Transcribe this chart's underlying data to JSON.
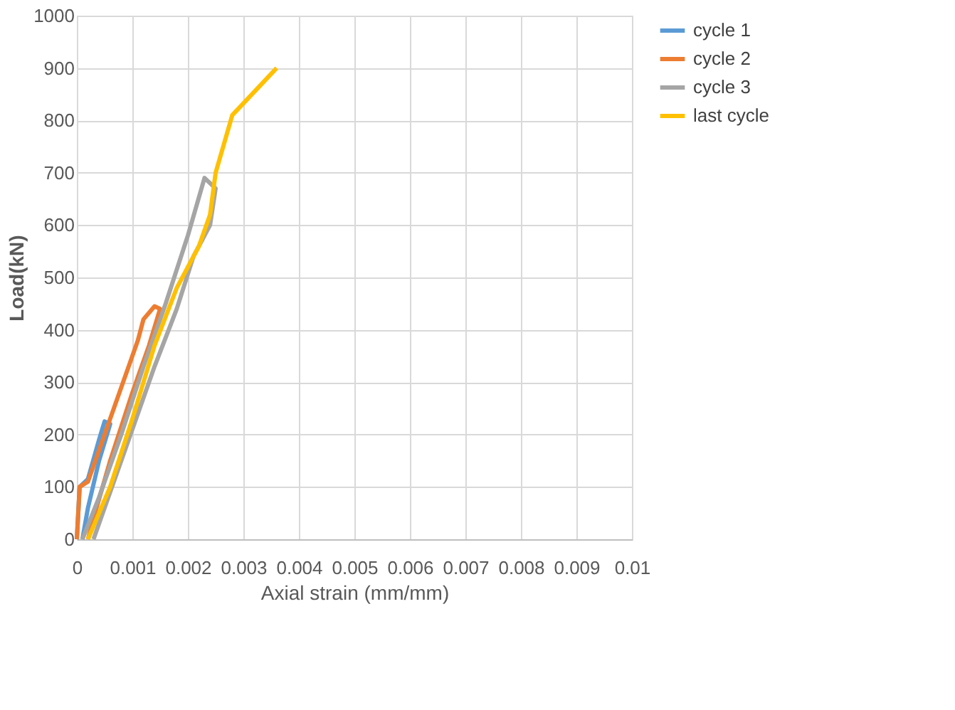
{
  "chart_data": {
    "type": "line",
    "xlabel": "Axial strain (mm/mm)",
    "ylabel": "Load(kN)",
    "xlim": [
      0,
      0.01
    ],
    "xticks": [
      0,
      0.001,
      0.002,
      0.003,
      0.004,
      0.005,
      0.006,
      0.007,
      0.008,
      0.009,
      0.01
    ],
    "ylim": [
      0,
      1000
    ],
    "yticks": [
      0,
      100,
      200,
      300,
      400,
      500,
      600,
      700,
      800,
      900,
      1000
    ],
    "grid": true,
    "legend": "right",
    "marker": "none",
    "line_style": "solid",
    "series": [
      {
        "name": "cycle 1",
        "color": "#5b9bd5",
        "x": [
          0,
          5e-05,
          0.0002,
          0.0004,
          0.0005,
          0.0006,
          0.0004,
          0.0002,
          0.0001
        ],
        "values": [
          0,
          100,
          115,
          190,
          225,
          220,
          150,
          60,
          0
        ]
      },
      {
        "name": "cycle 2",
        "color": "#ed7d31",
        "x": [
          0,
          5e-05,
          0.0002,
          0.0005,
          0.0008,
          0.0011,
          0.0012,
          0.0014,
          0.0015,
          0.0013,
          0.001,
          0.0006,
          0.0003,
          0.0002
        ],
        "values": [
          0,
          100,
          110,
          200,
          290,
          380,
          420,
          445,
          440,
          370,
          280,
          150,
          40,
          0
        ]
      },
      {
        "name": "cycle 3",
        "color": "#a5a5a5",
        "x": [
          0.0001,
          0.0004,
          0.0008,
          0.0012,
          0.0016,
          0.002,
          0.0023,
          0.0025,
          0.0024,
          0.0021,
          0.0018,
          0.0014,
          0.001,
          0.0006,
          0.0003
        ],
        "values": [
          0,
          80,
          200,
          330,
          450,
          580,
          690,
          670,
          600,
          540,
          440,
          330,
          210,
          90,
          0
        ]
      },
      {
        "name": "last cycle",
        "color": "#ffc000",
        "x": [
          0.0002,
          0.0006,
          0.001,
          0.0014,
          0.0018,
          0.0022,
          0.0024,
          0.0025,
          0.0028,
          0.0036
        ],
        "values": [
          0,
          100,
          230,
          370,
          480,
          560,
          620,
          700,
          810,
          900
        ]
      }
    ]
  }
}
